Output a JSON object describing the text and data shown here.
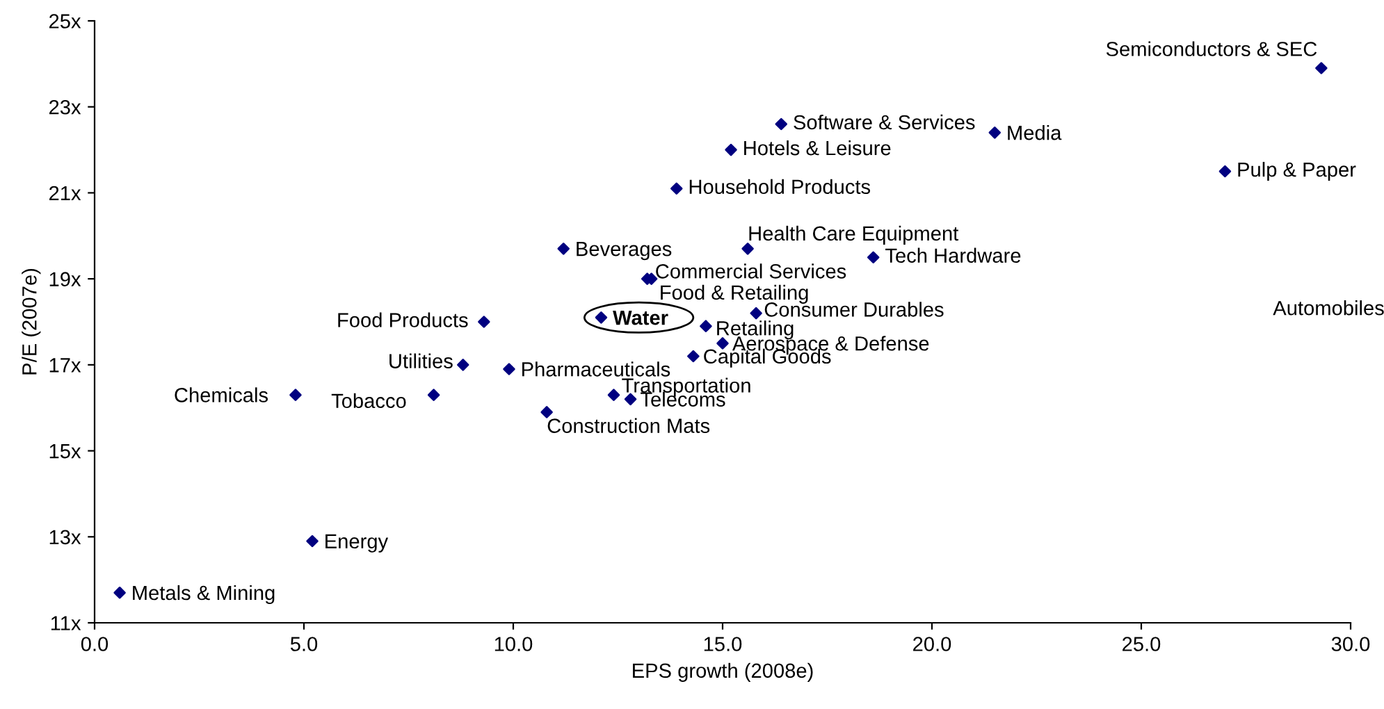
{
  "chart_data": {
    "type": "scatter",
    "xlabel": "EPS growth (2008e)",
    "ylabel": "P/E (2007e)",
    "marker": "diamond",
    "grid": false,
    "xlim": [
      0,
      30
    ],
    "ylim": [
      11,
      25
    ],
    "xticks": [
      {
        "value": 0,
        "label": "0.0"
      },
      {
        "value": 5,
        "label": "5.0"
      },
      {
        "value": 10,
        "label": "10.0"
      },
      {
        "value": 15,
        "label": "15.0"
      },
      {
        "value": 20,
        "label": "20.0"
      },
      {
        "value": 25,
        "label": "25.0"
      },
      {
        "value": 30,
        "label": "30.0"
      }
    ],
    "yticks": [
      {
        "value": 11,
        "label": "11x"
      },
      {
        "value": 13,
        "label": "13x"
      },
      {
        "value": 15,
        "label": "15x"
      },
      {
        "value": 17,
        "label": "17x"
      },
      {
        "value": 19,
        "label": "19x"
      },
      {
        "value": 21,
        "label": "21x"
      },
      {
        "value": 23,
        "label": "23x"
      },
      {
        "value": 25,
        "label": "25x"
      }
    ],
    "series": [
      {
        "color": "#000080",
        "x": [
          29.3,
          16.4,
          21.5,
          15.2,
          27.0,
          13.9,
          15.6,
          18.6,
          11.2,
          13.2,
          13.3,
          15.8,
          9.3,
          14.6,
          15.0,
          14.3,
          8.8,
          9.9,
          4.8,
          8.1,
          12.4,
          12.8,
          10.8,
          5.2,
          0.6
        ],
        "values": [
          23.9,
          22.6,
          22.4,
          22.0,
          21.5,
          21.1,
          19.7,
          19.5,
          19.7,
          19.0,
          19.0,
          18.2,
          18.0,
          17.9,
          17.5,
          17.2,
          17.0,
          16.9,
          16.3,
          16.3,
          16.3,
          16.2,
          15.9,
          12.9,
          11.7
        ],
        "value_labels": [
          "Semiconductors & SEC",
          "Software & Services",
          "Media",
          "Hotels & Leisure",
          "Pulp & Paper",
          "Household Products",
          "Health Care Equipment",
          "Tech Hardware",
          "Beverages",
          "Commercial Services",
          "Food & Retailing",
          "Consumer Durables",
          "Food Products",
          "Retailing",
          "Aerospace & Defense",
          "Capital Goods",
          "Utilities",
          "Pharmaceuticals",
          "Chemicals",
          "Tobacco",
          "Transportation",
          "Telecoms",
          "Construction Mats",
          "Energy",
          "Metals & Mining"
        ]
      },
      {
        "color": "#000080",
        "x": [
          12.1
        ],
        "values": [
          18.1
        ],
        "value_labels": [
          "Water"
        ]
      }
    ],
    "annotations": [
      "Automobiles"
    ]
  }
}
